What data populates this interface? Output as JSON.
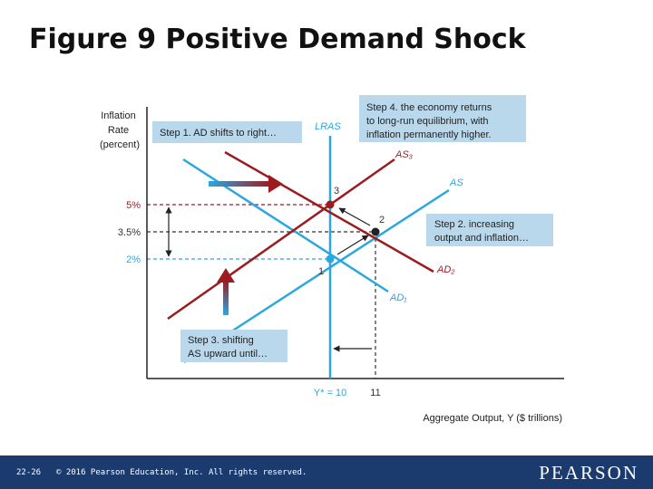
{
  "slide": {
    "title": "Figure 9 Positive Demand Shock",
    "slide_number": "22-26",
    "copyright": "© 2016 Pearson Education, Inc. All rights reserved.",
    "brand": "PEARSON"
  },
  "axes": {
    "y_label_lines": [
      "Inflation",
      "Rate",
      "(percent)"
    ],
    "x_label": "Aggregate Output, Y ($ trillions)",
    "y_ticks": [
      "5%",
      "3.5%",
      "2%"
    ],
    "x_ticks": [
      "Y* = 10",
      "11"
    ]
  },
  "curves": {
    "lras": "LRAS",
    "as3": "AS₃",
    "as1": "AS",
    "ad2": "AD₂",
    "ad1": "AD₁"
  },
  "points": {
    "p1": "1",
    "p2": "2",
    "p3": "3"
  },
  "callouts": {
    "step1": [
      "Step 1. AD shifts to right…"
    ],
    "step2": [
      "Step 2. increasing",
      "output and inflation…"
    ],
    "step3": [
      "Step 3. shifting",
      "AS upward until…"
    ],
    "step4": [
      "Step 4. the economy returns",
      "to long-run equilibrium, with",
      "inflation permanently higher."
    ]
  },
  "colors": {
    "blue_curve": "#29a8e0",
    "red_curve": "#9b1b1f",
    "callout_bg": "#b9d8ec",
    "axis": "#222222",
    "footer": "#1b3a6e"
  }
}
